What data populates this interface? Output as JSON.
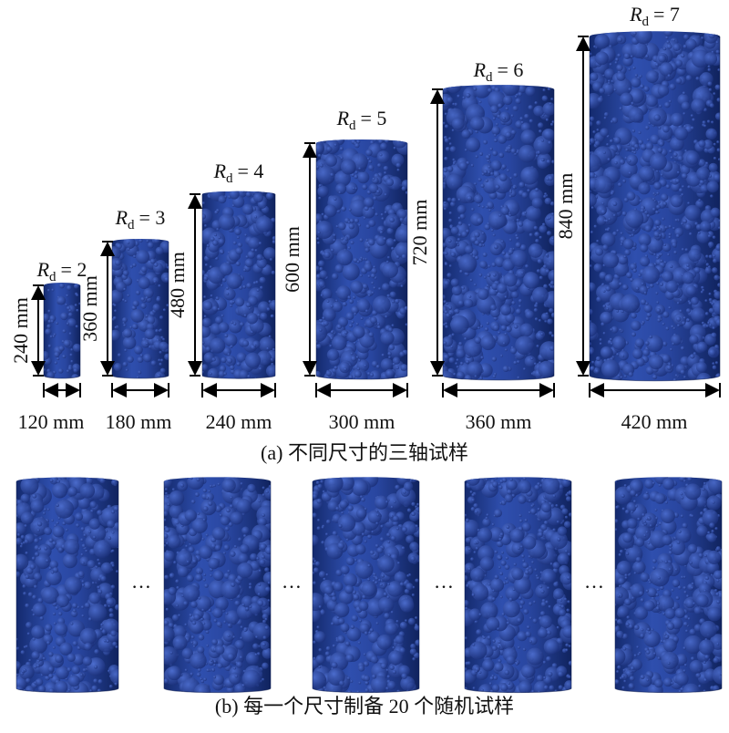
{
  "specimens": [
    {
      "symbol": "R",
      "subscript": "d",
      "value": "= 2",
      "height": "240 mm",
      "width": "120 mm"
    },
    {
      "symbol": "R",
      "subscript": "d",
      "value": "= 3",
      "height": "360 mm",
      "width": "180 mm"
    },
    {
      "symbol": "R",
      "subscript": "d",
      "value": "= 4",
      "height": "480 mm",
      "width": "240 mm"
    },
    {
      "symbol": "R",
      "subscript": "d",
      "value": "= 5",
      "height": "600 mm",
      "width": "300 mm"
    },
    {
      "symbol": "R",
      "subscript": "d",
      "value": "= 6",
      "height": "720 mm",
      "width": "360 mm"
    },
    {
      "symbol": "R",
      "subscript": "d",
      "value": "= 7",
      "height": "840 mm",
      "width": "420 mm"
    }
  ],
  "caption_a": "(a) 不同尺寸的三轴试样",
  "separators": [
    "…",
    "…",
    "…",
    "…"
  ],
  "caption_b": "(b) 每一个尺寸制备 20 个随机试样"
}
